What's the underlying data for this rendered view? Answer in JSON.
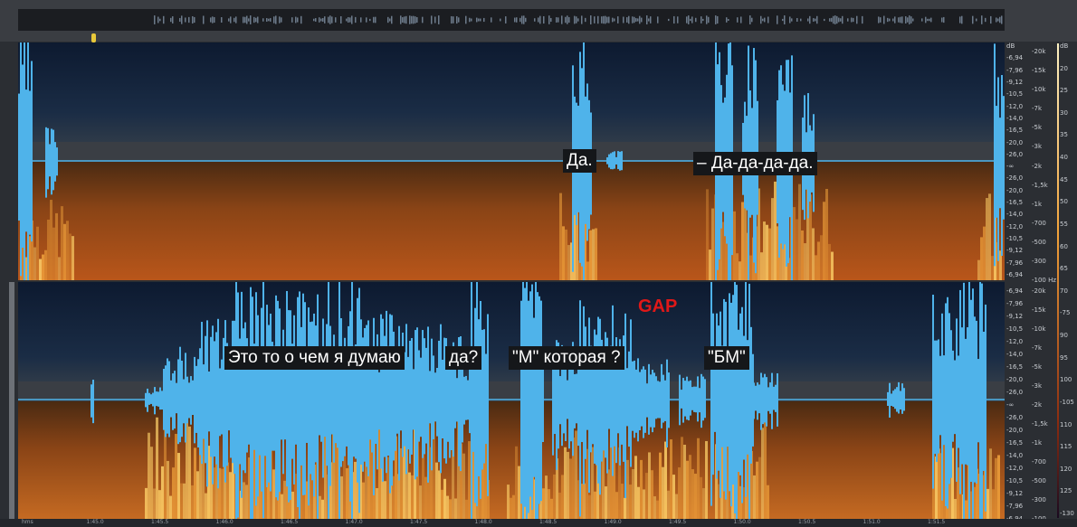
{
  "captions": {
    "top_1": "Да.",
    "top_2": "– Да-да-да-да.",
    "bottom_1": "Это то о чем я думаю",
    "bottom_2": "да?",
    "bottom_3": "\"М\" которая ?",
    "bottom_4": "\"БМ\"",
    "gap": "GAP"
  },
  "freq_ruler": [
    "dB",
    "-6,94",
    "-7,96",
    "-9,12",
    "-10,5",
    "-12,0",
    "-14,0",
    "-16,5",
    "-20,0",
    "-26,0",
    "-∞",
    "-26,0",
    "-20,0",
    "-16,5",
    "-14,0",
    "-12,0",
    "-10,5",
    "-9,12",
    "-7,96",
    "-6,94"
  ],
  "hz_ruler_top": [
    "-20k",
    "-15k",
    "-10k",
    "-7k",
    "-5k",
    "-3k",
    "-2k",
    "-1,5k",
    "-1k",
    "-700",
    "-500",
    "-300",
    "-100 Hz"
  ],
  "hz_ruler_bottom": [
    "-20k",
    "-15k",
    "-10k",
    "-7k",
    "-5k",
    "-3k",
    "-2k",
    "-1,5k",
    "-1k",
    "-700",
    "-500",
    "-300",
    "-100"
  ],
  "db_scale": [
    "dB",
    "20",
    "25",
    "30",
    "35",
    "40",
    "45",
    "50",
    "55",
    "60",
    "65",
    "70",
    "-75",
    "90",
    "95",
    "100",
    "-105",
    "110",
    "115",
    "120",
    "125",
    "-130"
  ],
  "timeline": [
    "hms",
    "1:45.0",
    "1:45.5",
    "1:46.0",
    "1:46.5",
    "1:47.0",
    "1:47.5",
    "1:48.0",
    "1:48.5",
    "1:49.0",
    "1:49.5",
    "1:50.0",
    "1:50.5",
    "1:51.0",
    "1:51.5"
  ],
  "colors": {
    "waveform": "#4fb3ea",
    "spectrum_hot": "#ffd36a",
    "spectrum_mid": "#b9561a",
    "spectrum_dark": "#1a2c45",
    "gap_label": "#e01818"
  }
}
